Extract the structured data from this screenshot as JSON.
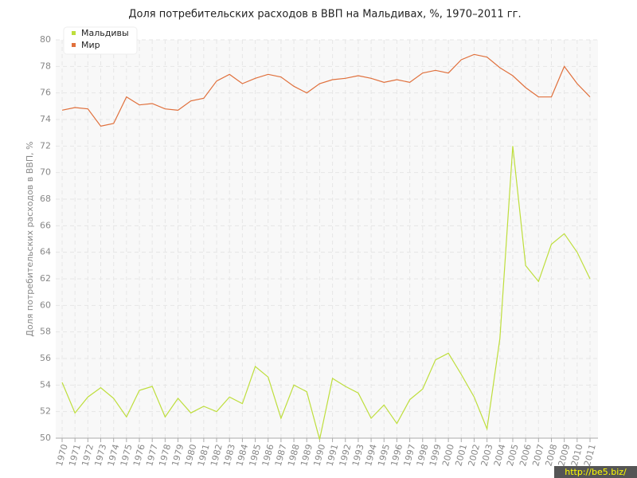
{
  "chart_data": {
    "type": "line",
    "title": "Доля потребительских расходов в ВВП на Мальдивах, %, 1970–2011 гг.",
    "y_label": "Доля потребительских расходов в ВВП, %",
    "watermark": "http://be5.biz/",
    "categories": [
      "1970",
      "1971",
      "1972",
      "1973",
      "1974",
      "1975",
      "1976",
      "1977",
      "1978",
      "1979",
      "1980",
      "1981",
      "1982",
      "1983",
      "1984",
      "1985",
      "1986",
      "1987",
      "1988",
      "1989",
      "1990",
      "1991",
      "1992",
      "1993",
      "1994",
      "1995",
      "1996",
      "1997",
      "1998",
      "1999",
      "2000",
      "2001",
      "2002",
      "2003",
      "2004",
      "2005",
      "2006",
      "2007",
      "2008",
      "2009",
      "2010",
      "2011"
    ],
    "series": [
      {
        "name": "Мальдивы",
        "color": "#bede3c",
        "values": [
          54.2,
          51.9,
          53.1,
          53.8,
          53.0,
          51.6,
          53.6,
          53.9,
          51.6,
          53.0,
          51.9,
          52.4,
          52.0,
          53.1,
          52.6,
          55.4,
          54.6,
          51.5,
          54.0,
          53.5,
          49.9,
          54.5,
          53.9,
          53.4,
          51.5,
          52.5,
          51.1,
          52.9,
          53.7,
          55.9,
          56.4,
          54.8,
          53.1,
          50.7,
          57.5,
          72.0,
          63.0,
          61.8,
          64.6,
          65.4,
          64.0,
          62.0
        ]
      },
      {
        "name": "Мир",
        "color": "#e0703c",
        "values": [
          74.7,
          74.9,
          74.8,
          73.5,
          73.7,
          75.7,
          75.1,
          75.2,
          74.8,
          74.7,
          75.4,
          75.6,
          76.9,
          77.4,
          76.7,
          77.1,
          77.4,
          77.2,
          76.5,
          76.0,
          76.7,
          77.0,
          77.1,
          77.3,
          77.1,
          76.8,
          77.0,
          76.8,
          77.5,
          77.7,
          77.5,
          78.5,
          78.9,
          78.7,
          77.9,
          77.3,
          76.4,
          75.7,
          75.7,
          78.0,
          76.7,
          75.7
        ]
      }
    ],
    "ylim": [
      50,
      80
    ],
    "yticks": [
      50,
      52,
      54,
      56,
      58,
      60,
      62,
      64,
      66,
      68,
      70,
      72,
      74,
      76,
      78,
      80
    ],
    "grid": true,
    "legend": "top-left"
  }
}
